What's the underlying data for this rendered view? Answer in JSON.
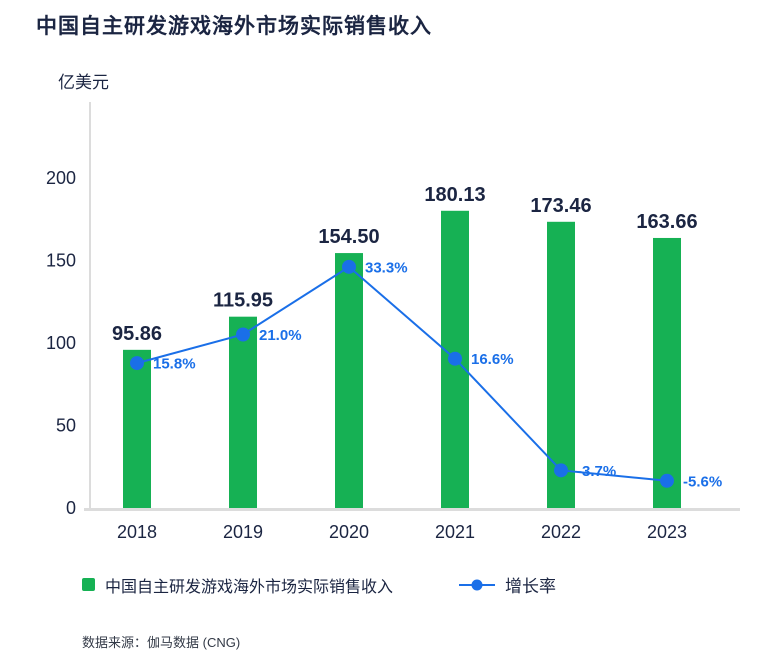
{
  "title": "中国自主研发游戏海外市场实际销售收入",
  "y_axis": {
    "unit_label": "亿美元",
    "ticks": [
      0,
      50,
      100,
      150,
      200
    ]
  },
  "legend": {
    "revenue_label": "中国自主研发游戏海外市场实际销售收入",
    "growth_label": "增长率"
  },
  "footer": {
    "source": "数据来源：伽马数据 (CNG)"
  },
  "colors": {
    "bar": "#16b154",
    "line": "#1a6fe8",
    "text": "#1b2542",
    "axis": "#dcdcdc",
    "source_text": "#333a47",
    "background": "#ffffff"
  },
  "chart_data": {
    "type": "bar",
    "subtype": "bar-line-combo",
    "title": "中国自主研发游戏海外市场实际销售收入",
    "ylabel": "亿美元",
    "categories": [
      "2018",
      "2019",
      "2020",
      "2021",
      "2022",
      "2023"
    ],
    "series": [
      {
        "name": "中国自主研发游戏海外市场实际销售收入",
        "type": "bar",
        "unit": "亿美元",
        "color": "#16b154",
        "values": [
          95.86,
          115.95,
          154.5,
          180.13,
          173.46,
          163.66
        ],
        "labels": [
          "95.86",
          "115.95",
          "154.50",
          "180.13",
          "173.46",
          "163.66"
        ]
      },
      {
        "name": "增长率",
        "type": "line",
        "unit": "%",
        "color": "#1a6fe8",
        "values": [
          15.8,
          21.0,
          33.3,
          16.6,
          -3.7,
          -5.6
        ],
        "labels": [
          "15.8%",
          "21.0%",
          "33.3%",
          "16.6%",
          "-3.7%",
          "-5.6%"
        ]
      }
    ],
    "ylim": [
      0,
      230
    ],
    "yticks": [
      0,
      50,
      100,
      150,
      200
    ],
    "grid": false,
    "legend_position": "bottom",
    "source": "数据来源：伽马数据 (CNG)"
  }
}
